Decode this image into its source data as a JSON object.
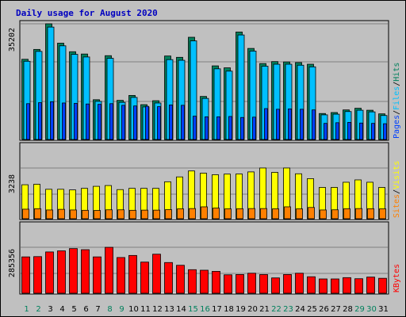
{
  "chart_data": {
    "type": "bar",
    "title": "Daily usage for August 2020",
    "categories": [
      "1",
      "2",
      "3",
      "4",
      "5",
      "6",
      "7",
      "8",
      "9",
      "10",
      "11",
      "12",
      "13",
      "14",
      "15",
      "16",
      "17",
      "18",
      "19",
      "20",
      "21",
      "22",
      "23",
      "24",
      "25",
      "26",
      "27",
      "28",
      "29",
      "30",
      "31"
    ],
    "weekend_days": [
      "1",
      "2",
      "8",
      "9",
      "15",
      "16",
      "22",
      "23",
      "29",
      "30"
    ],
    "panels": [
      {
        "name": "top",
        "max_label": "35202",
        "ylim": [
          0,
          35202
        ],
        "series": [
          {
            "name": "Hits",
            "color": "#00805c",
            "values": [
              24400,
              27400,
              35200,
              29300,
              26700,
              26000,
              12100,
              25500,
              11900,
              13400,
              10600,
              11800,
              25400,
              25000,
              31100,
              13100,
              22400,
              21800,
              32700,
              27700,
              23100,
              23700,
              23600,
              23400,
              22900,
              7900,
              8200,
              9000,
              9500,
              8900,
              7800
            ]
          },
          {
            "name": "Files",
            "color": "#00c0ff",
            "values": [
              23800,
              26800,
              34200,
              28500,
              25900,
              25100,
              11600,
              24700,
              11300,
              12800,
              9900,
              11100,
              24300,
              24100,
              30000,
              12500,
              21500,
              20800,
              31800,
              26900,
              22300,
              22900,
              22900,
              22600,
              22100,
              7500,
              7700,
              8500,
              8900,
              8400,
              7300
            ]
          },
          {
            "name": "Pages",
            "color": "#0040ff",
            "values": [
              10900,
              11200,
              11500,
              11100,
              11000,
              10800,
              10700,
              10900,
              10400,
              10200,
              10100,
              10000,
              10500,
              10400,
              7100,
              6900,
              6900,
              7000,
              6700,
              6800,
              9400,
              9200,
              9300,
              9200,
              9000,
              4900,
              5100,
              5200,
              5000,
              4900,
              4800
            ]
          }
        ],
        "legend": [
          "Pages",
          "Files",
          "Hits"
        ]
      },
      {
        "name": "middle",
        "max_label": "3238",
        "ylim": [
          0,
          3238
        ],
        "series": [
          {
            "name": "Visits",
            "color": "#ffff00",
            "values": [
              2170,
              2200,
              1880,
              1880,
              1840,
              1940,
              2070,
              2120,
              1860,
              1940,
              1940,
              1940,
              2360,
              2670,
              3050,
              2910,
              2810,
              2850,
              2860,
              2990,
              3240,
              2960,
              3240,
              2870,
              2560,
              2000,
              2000,
              2330,
              2480,
              2330,
              2000
            ]
          },
          {
            "name": "Sites",
            "color": "#ff8000",
            "values": [
              610,
              640,
              560,
              600,
              560,
              540,
              530,
              570,
              570,
              540,
              550,
              550,
              580,
              630,
              650,
              760,
              680,
              630,
              640,
              650,
              650,
              630,
              760,
              630,
              720,
              560,
              570,
              640,
              650,
              640,
              630
            ]
          }
        ],
        "legend": [
          "Sites",
          "Visits"
        ]
      },
      {
        "name": "bottom",
        "max_label": "285356",
        "ylim": [
          0,
          285356
        ],
        "series": [
          {
            "name": "KBytes",
            "color": "#ff0000",
            "values": [
              225600,
              227300,
              256300,
              263100,
              277200,
              270400,
              225600,
              285000,
              221700,
              234500,
              193300,
              242300,
              190600,
              173500,
              146200,
              142800,
              135800,
              114300,
              116100,
              124200,
              115900,
              95100,
              116100,
              124200,
              102300,
              88600,
              88600,
              96800,
              90000,
              100200,
              92700
            ]
          }
        ],
        "legend": [
          "KBytes"
        ]
      }
    ]
  }
}
